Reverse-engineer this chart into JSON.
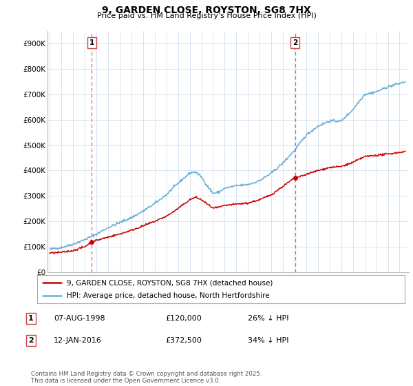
{
  "title": "9, GARDEN CLOSE, ROYSTON, SG8 7HX",
  "subtitle": "Price paid vs. HM Land Registry's House Price Index (HPI)",
  "xlim_start": 1994.8,
  "xlim_end": 2025.8,
  "ylim": [
    0,
    950000
  ],
  "yticks": [
    0,
    100000,
    200000,
    300000,
    400000,
    500000,
    600000,
    700000,
    800000,
    900000
  ],
  "ytick_labels": [
    "£0",
    "£100K",
    "£200K",
    "£300K",
    "£400K",
    "£500K",
    "£600K",
    "£700K",
    "£800K",
    "£900K"
  ],
  "sale1_year": 1998.6,
  "sale1_price": 120000,
  "sale2_year": 2016.04,
  "sale2_price": 372500,
  "background_color": "#ffffff",
  "grid_color": "#d8e4f0",
  "line_red": "#cc0000",
  "line_blue": "#6aaed6",
  "vline_color": "#cc4444",
  "footnote": "Contains HM Land Registry data © Crown copyright and database right 2025.\nThis data is licensed under the Open Government Licence v3.0.",
  "legend_line1": "9, GARDEN CLOSE, ROYSTON, SG8 7HX (detached house)",
  "legend_line2": "HPI: Average price, detached house, North Hertfordshire",
  "table_rows": [
    {
      "num": "1",
      "date": "07-AUG-1998",
      "price": "£120,000",
      "pct": "26% ↓ HPI"
    },
    {
      "num": "2",
      "date": "12-JAN-2016",
      "price": "£372,500",
      "pct": "34% ↓ HPI"
    }
  ]
}
